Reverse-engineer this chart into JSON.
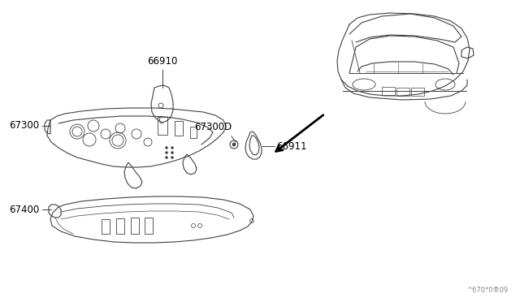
{
  "bg_color": "#ffffff",
  "line_color": "#404040",
  "watermark": "^670*0®09",
  "fig_width": 6.4,
  "fig_height": 3.72,
  "dpi": 100
}
